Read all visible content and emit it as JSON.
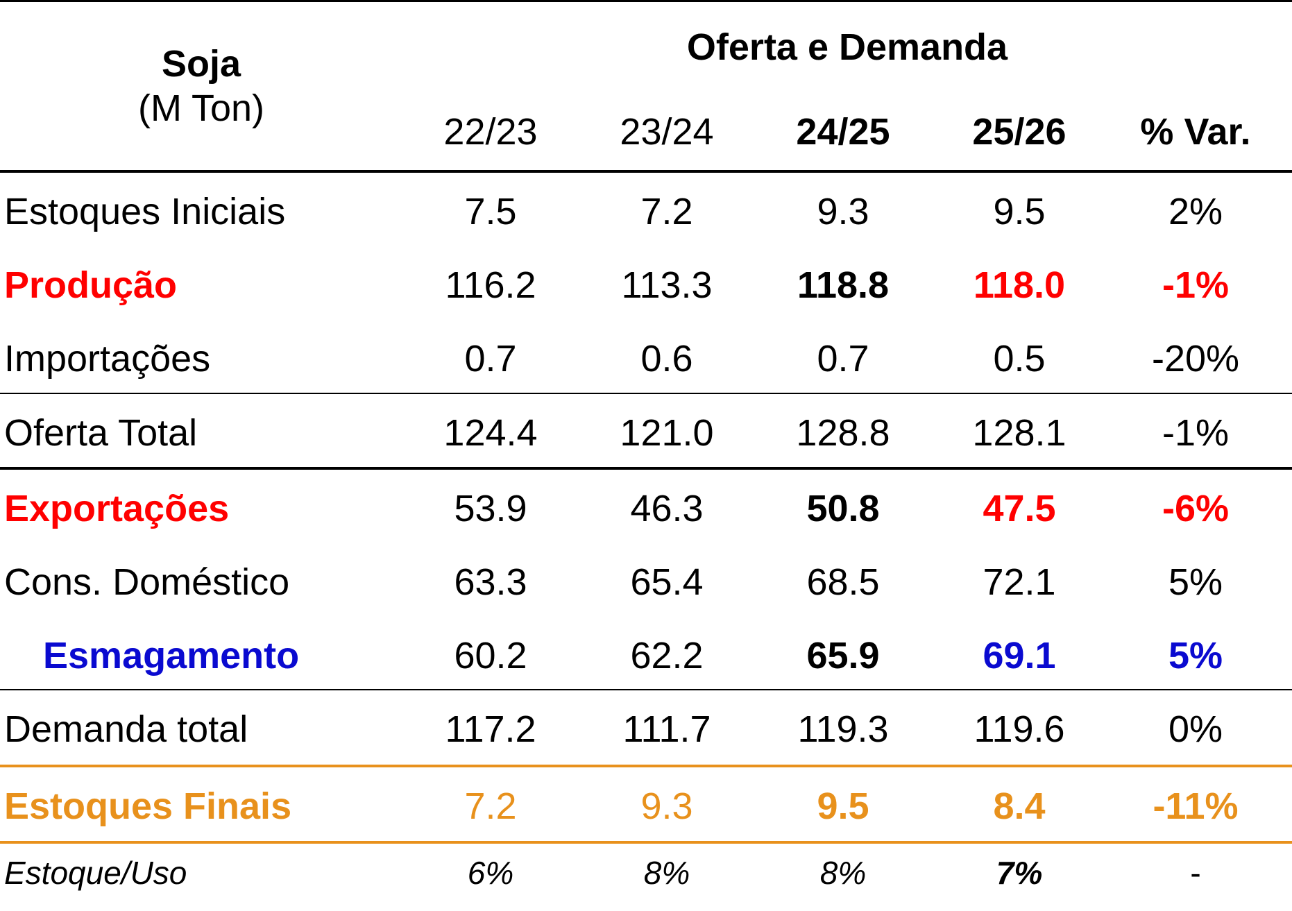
{
  "title": {
    "main": "Soja",
    "unit": "(M Ton)"
  },
  "group_header": "Oferta e Demanda",
  "columns": [
    "22/23",
    "23/24",
    "24/25",
    "25/26",
    "% Var."
  ],
  "rows": [
    {
      "label": "Estoques Iniciais",
      "values": [
        "7.5",
        "7.2",
        "9.3",
        "9.5",
        "2%"
      ]
    },
    {
      "label": "Produção",
      "values": [
        "116.2",
        "113.3",
        "118.8",
        "118.0",
        "-1%"
      ]
    },
    {
      "label": "Importações",
      "values": [
        "0.7",
        "0.6",
        "0.7",
        "0.5",
        "-20%"
      ]
    },
    {
      "label": "Oferta Total",
      "values": [
        "124.4",
        "121.0",
        "128.8",
        "128.1",
        "-1%"
      ]
    },
    {
      "label": "Exportações",
      "values": [
        "53.9",
        "46.3",
        "50.8",
        "47.5",
        "-6%"
      ]
    },
    {
      "label": "Cons. Doméstico",
      "values": [
        "63.3",
        "65.4",
        "68.5",
        "72.1",
        "5%"
      ]
    },
    {
      "label": "Esmagamento",
      "values": [
        "60.2",
        "62.2",
        "65.9",
        "69.1",
        "5%"
      ]
    },
    {
      "label": "Demanda total",
      "values": [
        "117.2",
        "111.7",
        "119.3",
        "119.6",
        "0%"
      ]
    },
    {
      "label": "Estoques Finais",
      "values": [
        "7.2",
        "9.3",
        "9.5",
        "8.4",
        "-11%"
      ]
    },
    {
      "label": "Estoque/Uso",
      "values": [
        "6%",
        "8%",
        "8%",
        "7%",
        "-"
      ]
    }
  ],
  "colors": {
    "highlight_red": "#FF0000",
    "highlight_blue": "#0A0AD0",
    "highlight_orange": "#E8911C"
  }
}
